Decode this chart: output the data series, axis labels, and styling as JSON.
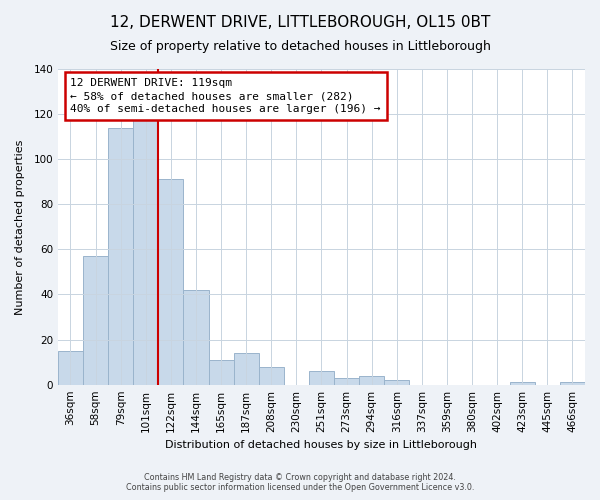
{
  "title": "12, DERWENT DRIVE, LITTLEBOROUGH, OL15 0BT",
  "subtitle": "Size of property relative to detached houses in Littleborough",
  "xlabel": "Distribution of detached houses by size in Littleborough",
  "ylabel": "Number of detached properties",
  "bar_labels": [
    "36sqm",
    "58sqm",
    "79sqm",
    "101sqm",
    "122sqm",
    "144sqm",
    "165sqm",
    "187sqm",
    "208sqm",
    "230sqm",
    "251sqm",
    "273sqm",
    "294sqm",
    "316sqm",
    "337sqm",
    "359sqm",
    "380sqm",
    "402sqm",
    "423sqm",
    "445sqm",
    "466sqm"
  ],
  "bar_values": [
    15,
    57,
    114,
    118,
    91,
    42,
    11,
    14,
    8,
    0,
    6,
    3,
    4,
    2,
    0,
    0,
    0,
    0,
    1,
    0,
    1
  ],
  "bar_color": "#c8d9ea",
  "bar_edge_color": "#9ab4cc",
  "annotation_text": "12 DERWENT DRIVE: 119sqm\n← 58% of detached houses are smaller (282)\n40% of semi-detached houses are larger (196) →",
  "annotation_box_color": "#ffffff",
  "annotation_box_edge_color": "#cc0000",
  "vline_color": "#cc0000",
  "ylim": [
    0,
    140
  ],
  "yticks": [
    0,
    20,
    40,
    60,
    80,
    100,
    120,
    140
  ],
  "footer_line1": "Contains HM Land Registry data © Crown copyright and database right 2024.",
  "footer_line2": "Contains public sector information licensed under the Open Government Licence v3.0.",
  "bg_color": "#eef2f7",
  "plot_bg_color": "#ffffff",
  "grid_color": "#c8d4e0",
  "title_fontsize": 11,
  "subtitle_fontsize": 9,
  "xlabel_fontsize": 8,
  "ylabel_fontsize": 8,
  "tick_fontsize": 7.5,
  "annotation_fontsize": 8,
  "footer_fontsize": 5.8
}
